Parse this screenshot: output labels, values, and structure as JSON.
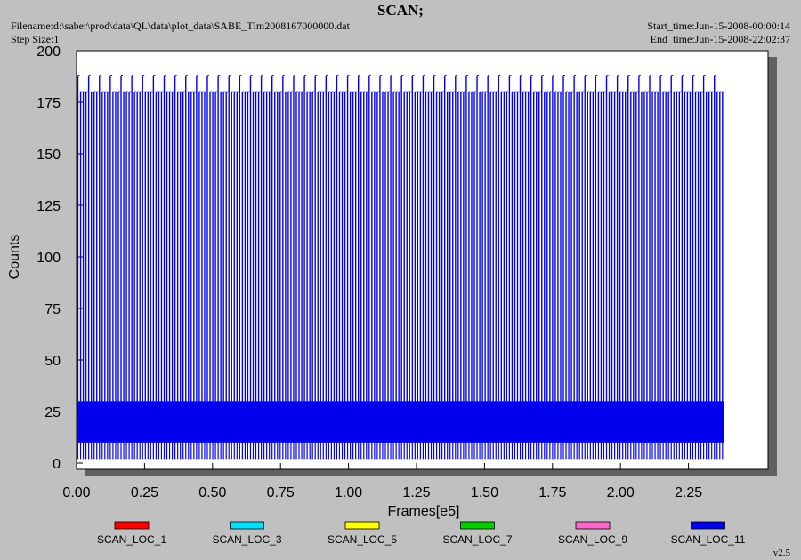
{
  "header": {
    "title": "SCAN;",
    "filename": "Filename:d:\\saber\\prod\\data\\QL\\data\\plot_data\\SABE_Tlm2008167000000.dat",
    "step_size": "Step Size:1",
    "start_time": "Start_time:Jun-15-2008-00:00:14",
    "end_time": "End_time:Jun-15-2008-22:02:37"
  },
  "version": "v2.5",
  "chart_data": {
    "type": "line",
    "title": "SCAN;",
    "xlabel": "Frames[e5]",
    "ylabel": "Counts",
    "xlim": [
      0,
      2.5
    ],
    "ylim": [
      0,
      200
    ],
    "xticks": [
      "0.00",
      "0.25",
      "0.50",
      "0.75",
      "1.00",
      "1.25",
      "1.50",
      "1.75",
      "2.00",
      "2.25"
    ],
    "yticks": [
      "0",
      "25",
      "50",
      "75",
      "100",
      "125",
      "150",
      "175",
      "200"
    ],
    "grid": false,
    "legend_position": "bottom",
    "data_x_end": 2.38,
    "series": [
      {
        "name": "SCAN_LOC_1",
        "color": "#ff0000",
        "band": [
          10,
          30
        ],
        "spikes": []
      },
      {
        "name": "SCAN_LOC_3",
        "color": "#00e0ff",
        "band": [
          10,
          30
        ],
        "spikes": []
      },
      {
        "name": "SCAN_LOC_5",
        "color": "#ffff00",
        "band": [
          10,
          30
        ],
        "spikes": []
      },
      {
        "name": "SCAN_LOC_7",
        "color": "#00d000",
        "band": [
          10,
          30
        ],
        "spikes": []
      },
      {
        "name": "SCAN_LOC_9",
        "color": "#ff66cc",
        "band": [
          10,
          30
        ],
        "spikes": []
      },
      {
        "name": "SCAN_LOC_11",
        "color": "#0000ee",
        "band": [
          10,
          30
        ],
        "spikes": [
          180,
          188
        ],
        "dips": [
          2,
          10
        ]
      }
    ]
  }
}
